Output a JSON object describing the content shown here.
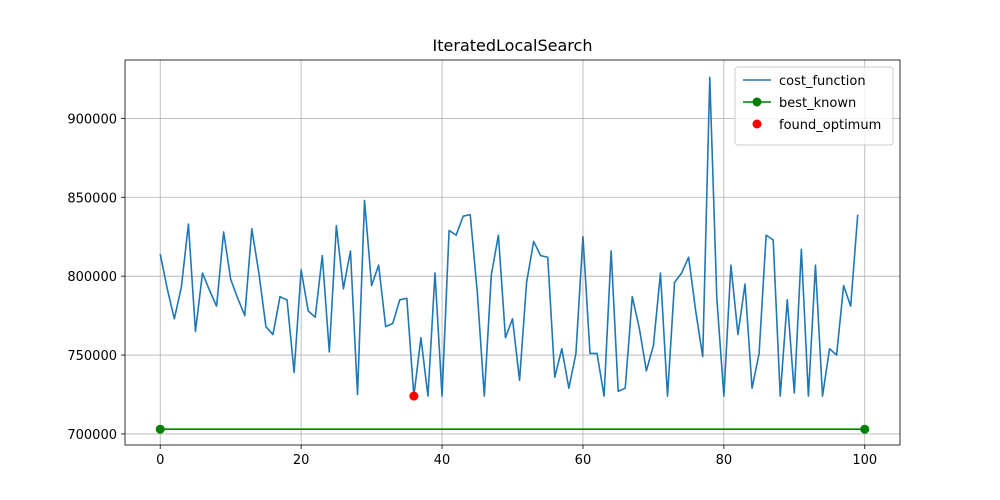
{
  "chart_data": {
    "type": "line",
    "title": "IteratedLocalSearch",
    "xlabel": "",
    "ylabel": "",
    "xlim": [
      -5,
      105
    ],
    "ylim": [
      693000,
      937000
    ],
    "xticks": [
      0,
      20,
      40,
      60,
      80,
      100
    ],
    "yticks": [
      700000,
      750000,
      800000,
      850000,
      900000
    ],
    "grid": true,
    "legend_position": "top-right",
    "series": [
      {
        "name": "cost_function",
        "kind": "line",
        "color": "#1f77b4",
        "x": [
          0,
          1,
          2,
          3,
          4,
          5,
          6,
          7,
          8,
          9,
          10,
          11,
          12,
          13,
          14,
          15,
          16,
          17,
          18,
          19,
          20,
          21,
          22,
          23,
          24,
          25,
          26,
          27,
          28,
          29,
          30,
          31,
          32,
          33,
          34,
          35,
          36,
          37,
          38,
          39,
          40,
          41,
          42,
          43,
          44,
          45,
          46,
          47,
          48,
          49,
          50,
          51,
          52,
          53,
          54,
          55,
          56,
          57,
          58,
          59,
          60,
          61,
          62,
          63,
          64,
          65,
          66,
          67,
          68,
          69,
          70,
          71,
          72,
          73,
          74,
          75,
          76,
          77,
          78,
          79,
          80,
          81,
          82,
          83,
          84,
          85,
          86,
          87,
          88,
          89,
          90,
          91,
          92,
          93,
          94,
          95,
          96,
          97,
          98,
          99
        ],
        "y": [
          814000,
          792000,
          773000,
          793000,
          833000,
          765000,
          802000,
          791000,
          781000,
          828000,
          798000,
          786000,
          775000,
          830000,
          802000,
          768000,
          763000,
          787000,
          785000,
          739000,
          804000,
          778000,
          774000,
          813000,
          752000,
          832000,
          792000,
          816000,
          725000,
          848000,
          794000,
          807000,
          768000,
          770000,
          785000,
          786000,
          724000,
          761000,
          724000,
          802000,
          724000,
          829000,
          826000,
          838000,
          839000,
          790000,
          724000,
          801000,
          826000,
          761000,
          773000,
          734000,
          796000,
          822000,
          813000,
          812000,
          736000,
          754000,
          729000,
          751000,
          825000,
          751000,
          751000,
          724000,
          816000,
          727000,
          729000,
          787000,
          767000,
          740000,
          756000,
          802000,
          724000,
          796000,
          802000,
          812000,
          778000,
          749000,
          926000,
          786000,
          724000,
          807000,
          763000,
          795000,
          729000,
          751000,
          826000,
          823000,
          724000,
          785000,
          726000,
          817000,
          724000,
          807000,
          724000,
          754000,
          750000,
          794000,
          781000,
          839000
        ]
      },
      {
        "name": "best_known",
        "kind": "line-marker",
        "color": "#008000",
        "x": [
          0,
          100
        ],
        "y": [
          703000,
          703000
        ]
      },
      {
        "name": "found_optimum",
        "kind": "scatter",
        "color": "#ff0000",
        "x": [
          36
        ],
        "y": [
          724000
        ]
      }
    ]
  }
}
